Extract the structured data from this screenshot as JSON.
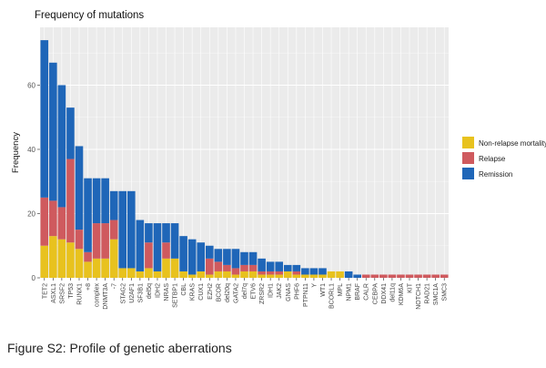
{
  "caption": "Figure S2: Profile of genetic aberrations",
  "chart_data": {
    "type": "bar",
    "stacked": true,
    "title": "Frequency of mutations",
    "xlabel": "",
    "ylabel": "Frequency",
    "ylim": [
      0,
      78
    ],
    "yticks": [
      0,
      20,
      40,
      60
    ],
    "grid": true,
    "legend_position": "right",
    "categories": [
      "TET2",
      "ASXL1",
      "SRSF2",
      "TP53",
      "RUNX1",
      "+8",
      "complex",
      "DNMT3A",
      "-7",
      "STAG2",
      "U2AF1",
      "SF3B1",
      "del5q",
      "IDH2",
      "NRAS",
      "SETBP1",
      "CBL",
      "KRAS",
      "CUX1",
      "EZH2",
      "BCOR",
      "del20q",
      "GATA2",
      "del7q",
      "ETV6",
      "ZRSR2",
      "IDH1",
      "JAK2",
      "GNAS",
      "PHF6",
      "PTPN11",
      "Y",
      "WT1",
      "BCORL1",
      "MPL",
      "NPM1",
      "BRAF",
      "CALR",
      "CEBPA",
      "DDX41",
      "del11q",
      "KDM6A",
      "KIT",
      "NOTCH1",
      "RAD21",
      "SMC1A",
      "SMC3"
    ],
    "series": [
      {
        "name": "Non-relapse mortality",
        "color": "#E8C21E",
        "values": [
          10,
          13,
          12,
          11,
          9,
          5,
          6,
          6,
          12,
          3,
          3,
          2,
          3,
          2,
          6,
          6,
          2,
          1,
          2,
          1,
          2,
          2,
          1,
          2,
          2,
          1,
          1,
          1,
          2,
          1,
          1,
          1,
          1,
          2,
          2,
          0,
          0,
          0,
          0,
          0,
          0,
          0,
          0,
          0,
          0,
          0,
          0
        ]
      },
      {
        "name": "Relapse",
        "color": "#CF5A5E",
        "values": [
          15,
          11,
          10,
          26,
          6,
          3,
          11,
          11,
          6,
          0,
          0,
          0,
          8,
          0,
          5,
          0,
          0,
          0,
          0,
          5,
          3,
          2,
          2,
          2,
          2,
          1,
          1,
          1,
          0,
          1,
          0,
          0,
          0,
          0,
          0,
          0,
          0,
          1,
          1,
          1,
          1,
          1,
          1,
          1,
          1,
          1,
          1
        ]
      },
      {
        "name": "Remission",
        "color": "#1F66B8",
        "values": [
          49,
          43,
          38,
          16,
          26,
          23,
          14,
          14,
          9,
          24,
          24,
          16,
          6,
          15,
          6,
          11,
          11,
          11,
          9,
          4,
          4,
          5,
          6,
          4,
          4,
          4,
          3,
          3,
          2,
          2,
          2,
          2,
          2,
          0,
          0,
          2,
          1,
          0,
          0,
          0,
          0,
          0,
          0,
          0,
          0,
          0,
          0
        ]
      }
    ]
  }
}
